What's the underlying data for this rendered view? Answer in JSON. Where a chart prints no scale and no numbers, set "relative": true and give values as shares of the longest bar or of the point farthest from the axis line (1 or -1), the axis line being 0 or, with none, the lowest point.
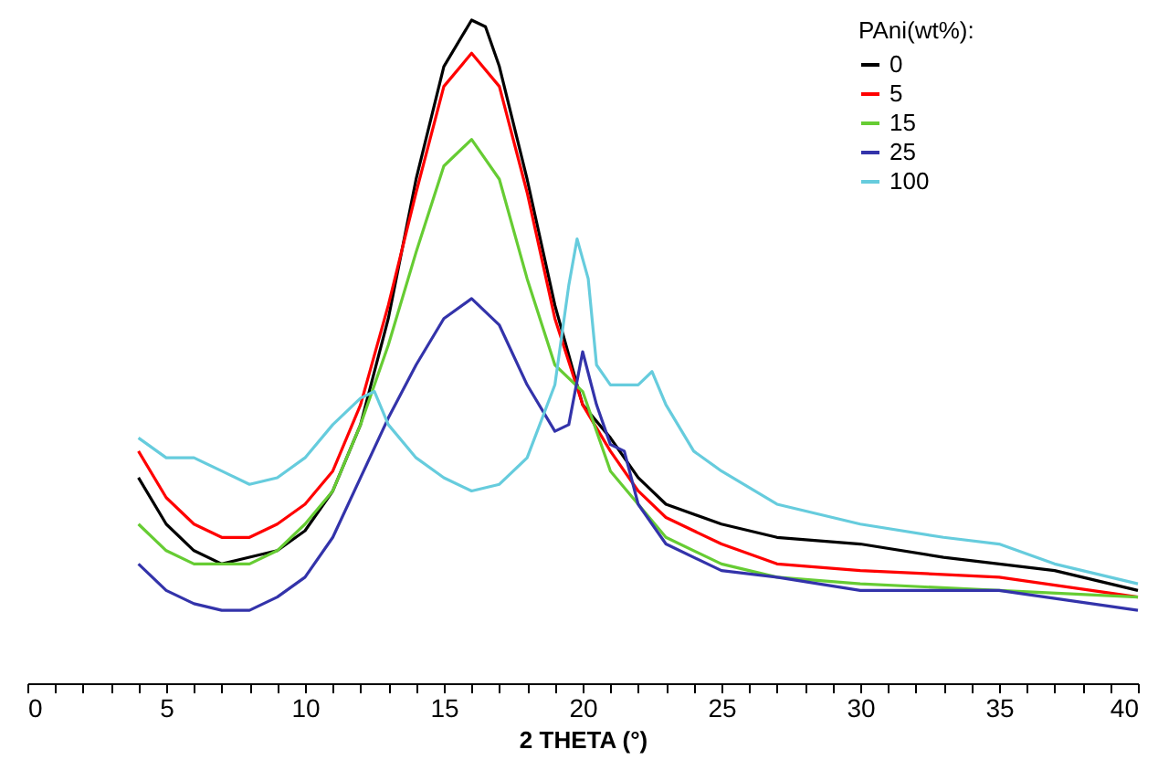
{
  "chart_data": {
    "type": "line",
    "relative": true,
    "xlabel": "2 THETA (°)",
    "legend_title": "PAni(wt%):",
    "legend": "top right",
    "grid": false,
    "line_style": "solid",
    "xlim": [
      0,
      40
    ],
    "xticks": [
      0,
      {
        "value": 1,
        "label": null
      },
      {
        "value": 2,
        "label": null
      },
      {
        "value": 3,
        "label": null
      },
      {
        "value": 4,
        "label": null
      },
      5,
      {
        "value": 6,
        "label": null
      },
      {
        "value": 7,
        "label": null
      },
      {
        "value": 8,
        "label": null
      },
      {
        "value": 9,
        "label": null
      },
      10,
      {
        "value": 11,
        "label": null
      },
      {
        "value": 12,
        "label": null
      },
      {
        "value": 13,
        "label": null
      },
      {
        "value": 14,
        "label": null
      },
      15,
      {
        "value": 16,
        "label": null
      },
      {
        "value": 17,
        "label": null
      },
      {
        "value": 18,
        "label": null
      },
      {
        "value": 19,
        "label": null
      },
      20,
      {
        "value": 21,
        "label": null
      },
      {
        "value": 22,
        "label": null
      },
      {
        "value": 23,
        "label": null
      },
      {
        "value": 24,
        "label": null
      },
      25,
      {
        "value": 26,
        "label": null
      },
      {
        "value": 27,
        "label": null
      },
      {
        "value": 28,
        "label": null
      },
      {
        "value": 29,
        "label": null
      },
      30,
      {
        "value": 31,
        "label": null
      },
      {
        "value": 32,
        "label": null
      },
      {
        "value": 33,
        "label": null
      },
      {
        "value": 34,
        "label": null
      },
      35,
      {
        "value": 36,
        "label": null
      },
      {
        "value": 37,
        "label": null
      },
      {
        "value": 38,
        "label": null
      },
      {
        "value": 39,
        "label": null
      },
      40
    ],
    "series": [
      {
        "name": "0",
        "color": "#000000",
        "x": [
          4,
          5,
          6,
          7,
          8,
          9,
          10,
          11,
          12,
          13,
          14,
          15,
          16,
          16.5,
          17,
          18,
          19,
          20,
          21,
          22,
          23,
          25,
          27,
          30,
          33,
          35,
          37,
          40
        ],
        "values": [
          0.31,
          0.24,
          0.2,
          0.18,
          0.19,
          0.2,
          0.23,
          0.29,
          0.39,
          0.55,
          0.76,
          0.93,
          1.0,
          0.99,
          0.93,
          0.76,
          0.57,
          0.42,
          0.37,
          0.31,
          0.27,
          0.24,
          0.22,
          0.21,
          0.19,
          0.18,
          0.17,
          0.14
        ]
      },
      {
        "name": "5",
        "color": "#ff0000",
        "x": [
          4,
          5,
          6,
          7,
          8,
          9,
          10,
          11,
          12,
          13,
          14,
          15,
          16,
          17,
          18,
          19,
          20,
          21,
          22,
          23,
          25,
          27,
          30,
          35,
          40
        ],
        "values": [
          0.35,
          0.28,
          0.24,
          0.22,
          0.22,
          0.24,
          0.27,
          0.32,
          0.42,
          0.57,
          0.74,
          0.9,
          0.95,
          0.9,
          0.74,
          0.55,
          0.42,
          0.35,
          0.29,
          0.25,
          0.21,
          0.18,
          0.17,
          0.16,
          0.13
        ]
      },
      {
        "name": "15",
        "color": "#66cc33",
        "x": [
          4,
          5,
          6,
          7,
          8,
          9,
          10,
          11,
          12,
          13,
          14,
          15,
          16,
          17,
          18,
          19,
          20,
          21,
          22,
          23,
          25,
          27,
          30,
          35,
          40
        ],
        "values": [
          0.24,
          0.2,
          0.18,
          0.18,
          0.18,
          0.2,
          0.24,
          0.29,
          0.39,
          0.51,
          0.65,
          0.78,
          0.82,
          0.76,
          0.61,
          0.48,
          0.44,
          0.32,
          0.27,
          0.22,
          0.18,
          0.16,
          0.15,
          0.14,
          0.13
        ]
      },
      {
        "name": "25",
        "color": "#3333aa",
        "x": [
          4,
          5,
          6,
          7,
          8,
          9,
          10,
          11,
          12,
          13,
          14,
          15,
          16,
          17,
          18,
          19,
          19.5,
          20,
          20.5,
          21,
          21.5,
          22,
          23,
          25,
          27,
          30,
          35,
          40
        ],
        "values": [
          0.18,
          0.14,
          0.12,
          0.11,
          0.11,
          0.13,
          0.16,
          0.22,
          0.31,
          0.4,
          0.48,
          0.55,
          0.58,
          0.54,
          0.45,
          0.38,
          0.39,
          0.5,
          0.42,
          0.36,
          0.35,
          0.27,
          0.21,
          0.17,
          0.16,
          0.14,
          0.14,
          0.11
        ]
      },
      {
        "name": "100",
        "color": "#66ccdd",
        "x": [
          4,
          5,
          6,
          7,
          8,
          9,
          10,
          11,
          12,
          12.5,
          13,
          14,
          15,
          16,
          17,
          18,
          19,
          19.5,
          19.8,
          20.2,
          20.5,
          21,
          22,
          22.5,
          23,
          24,
          25,
          27,
          30,
          33,
          35,
          37,
          40
        ],
        "values": [
          0.37,
          0.34,
          0.34,
          0.32,
          0.3,
          0.31,
          0.34,
          0.39,
          0.43,
          0.44,
          0.39,
          0.34,
          0.31,
          0.29,
          0.3,
          0.34,
          0.45,
          0.6,
          0.67,
          0.61,
          0.48,
          0.45,
          0.45,
          0.47,
          0.42,
          0.35,
          0.32,
          0.27,
          0.24,
          0.22,
          0.21,
          0.18,
          0.15
        ]
      }
    ]
  }
}
